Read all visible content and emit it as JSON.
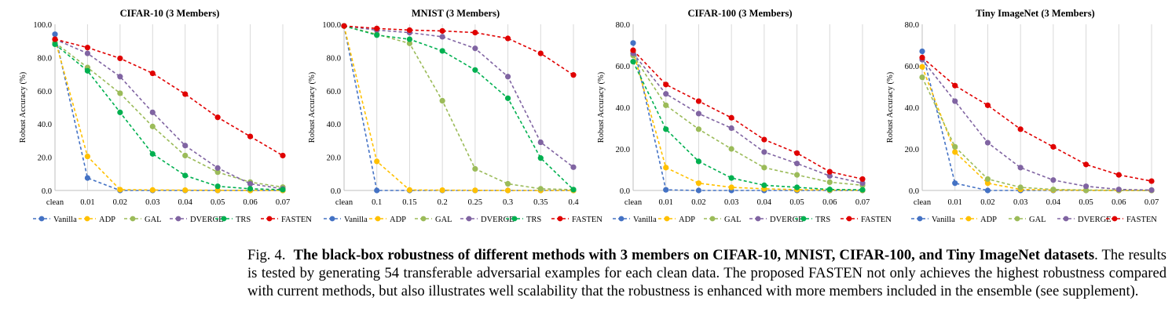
{
  "chart_data": [
    {
      "type": "line",
      "title": "CIFAR-10 (3 Members)",
      "ylabel": "Robust Accuracy (%)",
      "xlabel": "",
      "categories": [
        "clean",
        "0.01",
        "0.02",
        "0.03",
        "0.04",
        "0.05",
        "0.06",
        "0.07"
      ],
      "ylim": [
        0,
        100
      ],
      "yticks": [
        "0.0",
        "20.0",
        "40.0",
        "60.0",
        "80.0",
        "100.0"
      ],
      "legend": "bottom",
      "series": [
        {
          "name": "Vanilla",
          "color": "#4472c4",
          "values": [
            94,
            7.5,
            0,
            0,
            0,
            0,
            0,
            0
          ]
        },
        {
          "name": "ADP",
          "color": "#ffc000",
          "values": [
            91,
            20.5,
            0.5,
            0.3,
            0.2,
            0.1,
            0,
            0
          ]
        },
        {
          "name": "GAL",
          "color": "#9bbb59",
          "values": [
            89,
            74,
            58.5,
            38.5,
            21,
            11,
            5,
            2
          ]
        },
        {
          "name": "DVERGE",
          "color": "#8064a2",
          "values": [
            91,
            82.5,
            68.5,
            47,
            27,
            13.5,
            4,
            1
          ]
        },
        {
          "name": "TRS",
          "color": "#00b050",
          "values": [
            88,
            72,
            47,
            22,
            9,
            2.5,
            1,
            0.5
          ]
        },
        {
          "name": "FASTEN",
          "color": "#e00000",
          "values": [
            91,
            86,
            79.5,
            70.5,
            58,
            44,
            32.5,
            21
          ]
        }
      ]
    },
    {
      "type": "line",
      "title": "MNIST (3 Members)",
      "ylabel": "Robust Accuracy (%)",
      "xlabel": "",
      "categories": [
        "clean",
        "0.1",
        "0.15",
        "0.2",
        "0.25",
        "0.3",
        "0.35",
        "0.4"
      ],
      "ylim": [
        0,
        100
      ],
      "yticks": [
        "0.0",
        "20.0",
        "40.0",
        "60.0",
        "80.0",
        "100.0"
      ],
      "legend": "bottom",
      "series": [
        {
          "name": "Vanilla",
          "color": "#4472c4",
          "values": [
            99,
            0,
            0,
            0,
            0,
            0,
            0,
            0
          ]
        },
        {
          "name": "ADP",
          "color": "#ffc000",
          "values": [
            99,
            17.5,
            0.3,
            0.2,
            0.1,
            0,
            0,
            0
          ]
        },
        {
          "name": "GAL",
          "color": "#9bbb59",
          "values": [
            99,
            94,
            88.5,
            54,
            13,
            4,
            1,
            0.5
          ]
        },
        {
          "name": "DVERGE",
          "color": "#8064a2",
          "values": [
            99,
            96.5,
            95,
            92.5,
            85.5,
            68.5,
            29,
            14
          ]
        },
        {
          "name": "TRS",
          "color": "#00b050",
          "values": [
            99,
            93.5,
            91,
            84,
            72.5,
            55.5,
            19.5,
            0.5
          ]
        },
        {
          "name": "FASTEN",
          "color": "#e00000",
          "values": [
            99,
            97.5,
            96.5,
            96,
            95,
            91.5,
            82.5,
            69.5
          ]
        }
      ]
    },
    {
      "type": "line",
      "title": "CIFAR-100 (3 Members)",
      "ylabel": "Robust Accuracy (%)",
      "xlabel": "",
      "categories": [
        "clean",
        "0.01",
        "0.02",
        "0.03",
        "0.04",
        "0.05",
        "0.06",
        "0.07"
      ],
      "ylim": [
        0,
        80
      ],
      "yticks": [
        "0.0",
        "20.0",
        "40.0",
        "60.0",
        "80.0"
      ],
      "legend": "bottom",
      "series": [
        {
          "name": "Vanilla",
          "color": "#4472c4",
          "values": [
            71,
            0.3,
            0,
            0,
            0,
            0,
            0,
            0
          ]
        },
        {
          "name": "ADP",
          "color": "#ffc000",
          "values": [
            67,
            11,
            3.5,
            1.5,
            0.8,
            0.4,
            0.2,
            0.1
          ]
        },
        {
          "name": "GAL",
          "color": "#9bbb59",
          "values": [
            65,
            41,
            29.5,
            20,
            11,
            7.5,
            4,
            2.5
          ]
        },
        {
          "name": "DVERGE",
          "color": "#8064a2",
          "values": [
            66,
            46.5,
            37,
            30,
            18.5,
            13,
            7,
            3.5
          ]
        },
        {
          "name": "TRS",
          "color": "#00b050",
          "values": [
            62,
            29.5,
            14,
            6,
            2.5,
            1.5,
            0.5,
            0.3
          ]
        },
        {
          "name": "FASTEN",
          "color": "#e00000",
          "values": [
            67.5,
            51,
            43,
            35,
            24.5,
            18,
            9,
            5.5
          ]
        }
      ]
    },
    {
      "type": "line",
      "title": "Tiny ImageNet (3 Members)",
      "ylabel": "Robust Accuracy (%)",
      "xlabel": "",
      "categories": [
        "clean",
        "0.01",
        "0.02",
        "0.03",
        "0.04",
        "0.05",
        "0.06",
        "0.07"
      ],
      "ylim": [
        0,
        80
      ],
      "yticks": [
        "0.0",
        "20.0",
        "40.0",
        "60.0",
        "80.0"
      ],
      "legend": "bottom",
      "series": [
        {
          "name": "Vanilla",
          "color": "#4472c4",
          "values": [
            67,
            3.5,
            0,
            0,
            0,
            0,
            0,
            0
          ]
        },
        {
          "name": "ADP",
          "color": "#ffc000",
          "values": [
            59.5,
            18.5,
            3.5,
            0.5,
            0.2,
            0.1,
            0,
            0
          ]
        },
        {
          "name": "GAL",
          "color": "#9bbb59",
          "values": [
            54.5,
            21,
            5.5,
            1.5,
            0.5,
            0.2,
            0.1,
            0
          ]
        },
        {
          "name": "DVERGE",
          "color": "#8064a2",
          "values": [
            63,
            43,
            23,
            11,
            5,
            2,
            0.5,
            0.2
          ]
        },
        {
          "name": "FASTEN",
          "color": "#e00000",
          "values": [
            64,
            50.5,
            41,
            29.5,
            21,
            12.5,
            7.5,
            4.5
          ]
        }
      ]
    }
  ],
  "caption": {
    "prefix": "Fig. 4.",
    "bold": "The black-box robustness of different methods with 3 members on CIFAR-10, MNIST, CIFAR-100, and Tiny ImageNet datasets",
    "rest": ". The results is tested by generating 54 transferable adversarial examples for each clean data. The proposed FASTEN not only achieves the highest robustness compared with current methods, but also illustrates well scalability that the robustness is enhanced with more members included in the ensemble (see supplement)."
  }
}
